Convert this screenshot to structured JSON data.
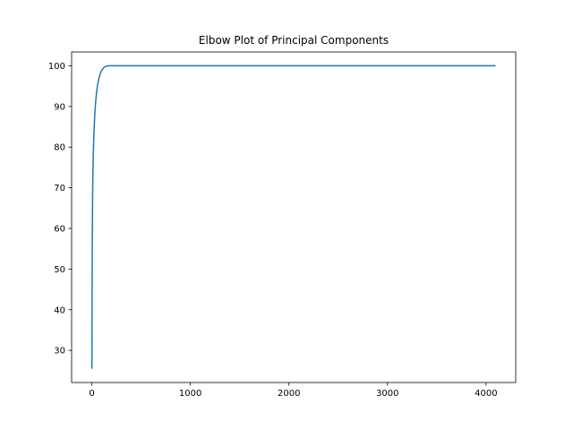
{
  "chart_data": {
    "type": "line",
    "title": "Elbow Plot of Principal Components",
    "xlabel": "",
    "ylabel": "",
    "xlim": [
      -205,
      4301
    ],
    "ylim": [
      22.1,
      103.4
    ],
    "x_ticks": [
      0,
      1000,
      2000,
      3000,
      4000
    ],
    "y_ticks": [
      30,
      40,
      50,
      60,
      70,
      80,
      90,
      100
    ],
    "grid": false,
    "legend": "none",
    "series": [
      {
        "color": "#1f77b4",
        "x": [
          1,
          2,
          3,
          5,
          8,
          10,
          15,
          20,
          25,
          30,
          40,
          50,
          60,
          70,
          80,
          90,
          100,
          110,
          120,
          130,
          140,
          150,
          160,
          170,
          180,
          200,
          500,
          1000,
          2000,
          3000,
          4000,
          4096
        ],
        "y": [
          25.5,
          35,
          45,
          58,
          68,
          72.5,
          78.5,
          82.5,
          85.5,
          88,
          91.5,
          93.8,
          95.5,
          96.7,
          97.6,
          98.3,
          98.8,
          99.2,
          99.5,
          99.7,
          99.85,
          99.93,
          99.97,
          99.99,
          100,
          100,
          100,
          100,
          100,
          100,
          100,
          100
        ]
      }
    ]
  }
}
